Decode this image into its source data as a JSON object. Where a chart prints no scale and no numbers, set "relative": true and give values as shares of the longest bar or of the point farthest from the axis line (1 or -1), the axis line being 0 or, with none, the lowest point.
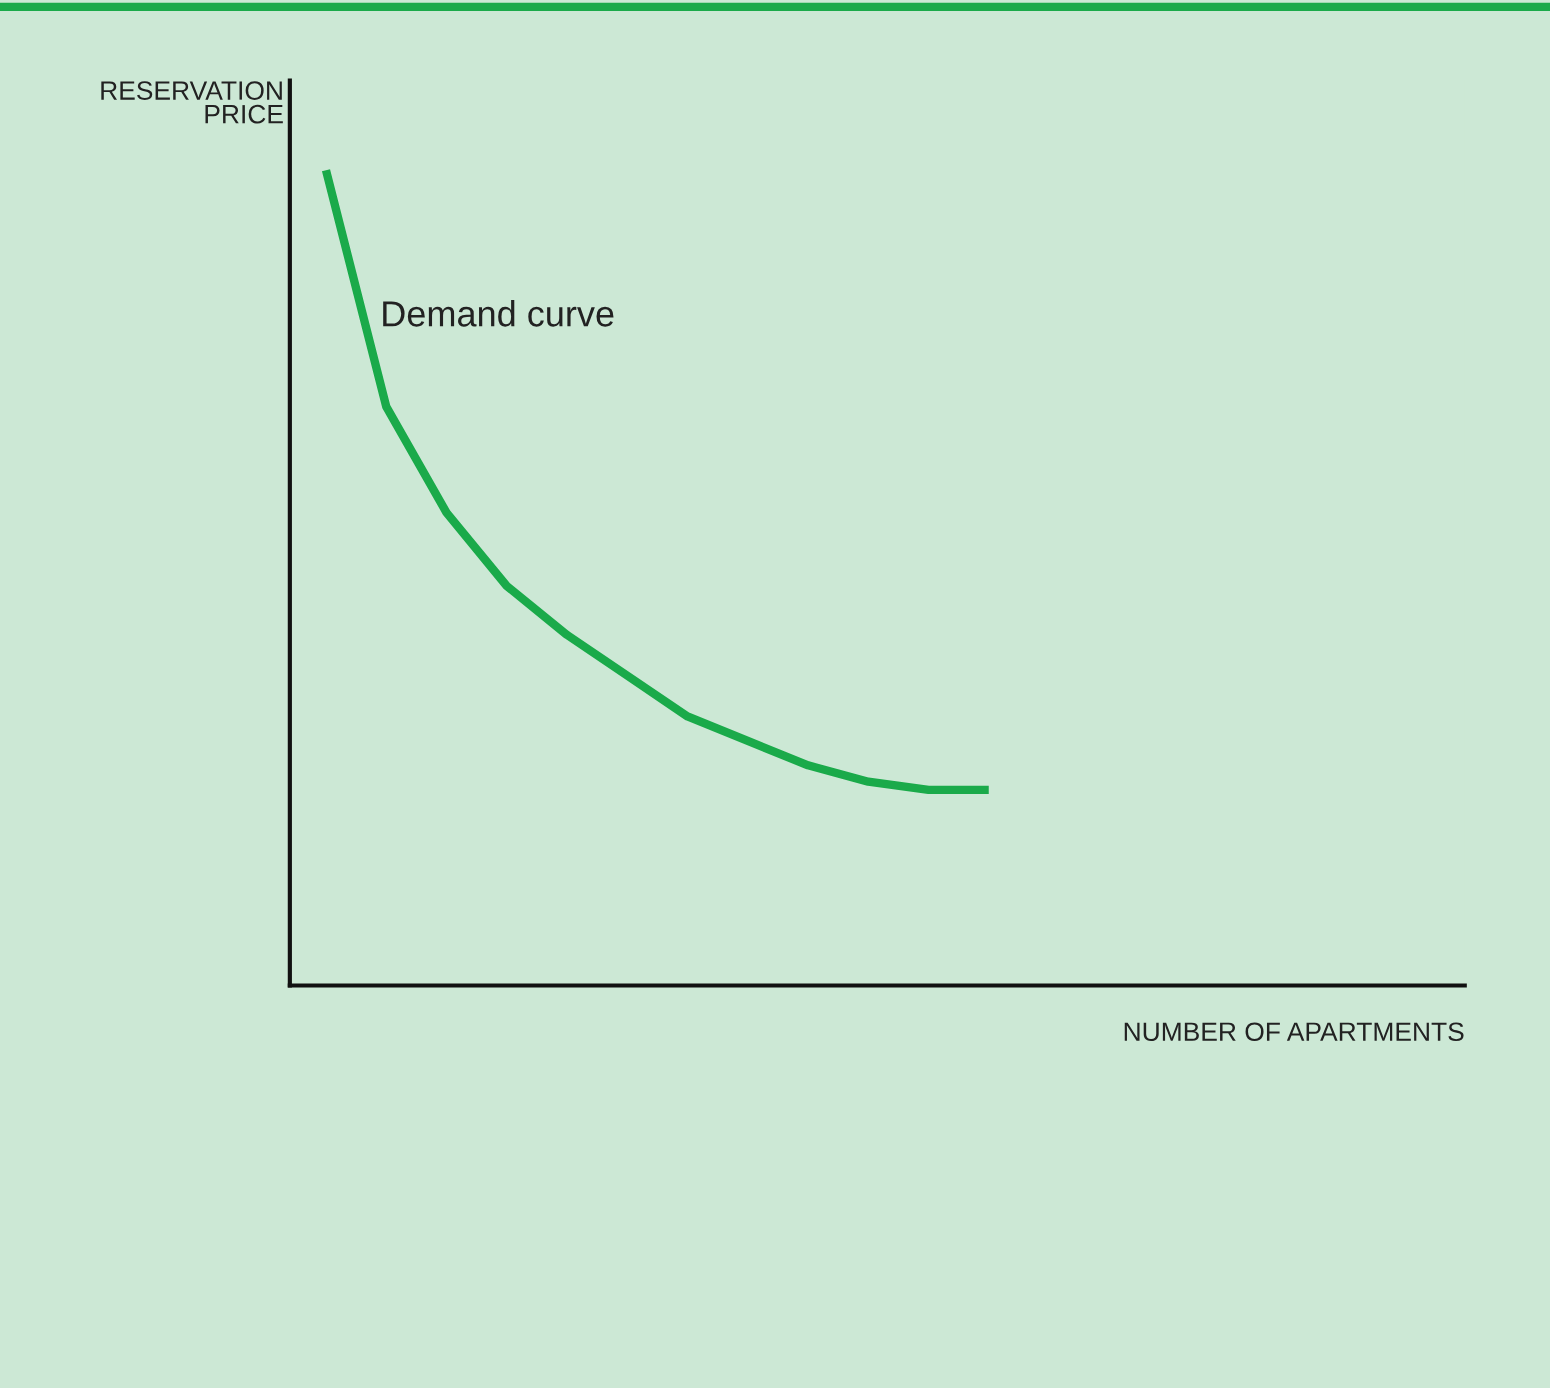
{
  "chart_data": {
    "type": "line",
    "relative": true,
    "xlabel": "NUMBER OF APARTMENTS",
    "ylabel": "RESERVATION\nPRICE",
    "categories": [
      null,
      null,
      null,
      null,
      null,
      null,
      null,
      null,
      null,
      null,
      null,
      null
    ],
    "series": [
      {
        "name": "Demand curve",
        "color": "#1aaa4a",
        "values": [
          1,
          0.71,
          0.58,
          0.49,
          0.43,
          0.38,
          0.33,
          0.3,
          0.27,
          0.25,
          0.24,
          0.24
        ]
      }
    ],
    "grid": false,
    "legend": false,
    "marker": "none",
    "line_style": "solid"
  }
}
